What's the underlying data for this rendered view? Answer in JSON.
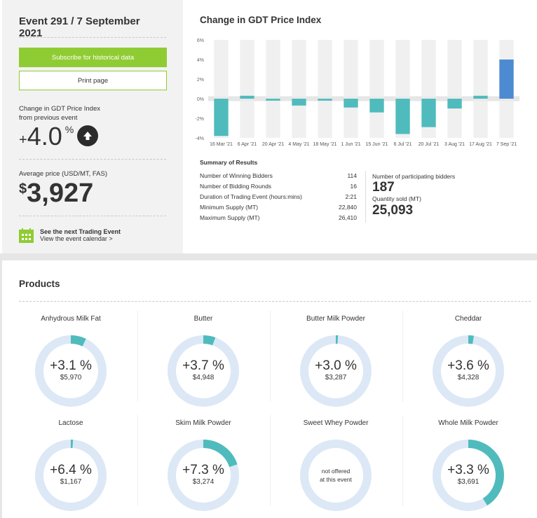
{
  "event": {
    "title": "Event 291 / 7 September 2021",
    "subscribe_label": "Subscribe for historical data",
    "print_label": "Print page",
    "change_label_1": "Change in GDT Price Index",
    "change_label_2": "from previous event",
    "change_sign": "+",
    "change_value": "4.0",
    "change_unit": "%",
    "avg_label": "Average price (USD/MT, FAS)",
    "avg_currency": "$",
    "avg_value": "3,927",
    "next_event": "See the next Trading Event",
    "calendar_link": "View the event calendar >"
  },
  "chart_data": {
    "type": "bar",
    "title": "Change in GDT Price Index",
    "categories": [
      "16 Mar '21",
      "6 Apr '21",
      "20 Apr '21",
      "4 May '21",
      "18 May '21",
      "1 Jun '21",
      "15 Jun '21",
      "6 Jul '21",
      "20 Jul '21",
      "3 Aug '21",
      "17 Aug '21",
      "7 Sep '21"
    ],
    "values": [
      -3.8,
      0.3,
      -0.2,
      -0.7,
      -0.2,
      -0.9,
      -1.4,
      -3.6,
      -2.9,
      -1.0,
      0.3,
      4.0
    ],
    "ylim": [
      -4,
      6
    ],
    "yticks": [
      "6%",
      "4%",
      "2%",
      "0%",
      "-2%",
      "-4%"
    ],
    "ytick_values": [
      6,
      4,
      2,
      0,
      -2,
      -4
    ],
    "colors": {
      "past": "#4fbbbd",
      "current": "#4e8ad2"
    }
  },
  "summary": {
    "title": "Summary of Results",
    "rows": [
      {
        "label": "Number of Winning Bidders",
        "value": "114"
      },
      {
        "label": "Number of Bidding Rounds",
        "value": "16"
      },
      {
        "label": "Duration of Trading Event (hours:mins)",
        "value": "2:21"
      },
      {
        "label": "Minimum Supply (MT)",
        "value": "22,840"
      },
      {
        "label": "Maximum Supply (MT)",
        "value": "26,410"
      }
    ],
    "bidders_label": "Number of participating bidders",
    "bidders_value": "187",
    "qty_label": "Quantity sold (MT)",
    "qty_value": "25,093"
  },
  "products": {
    "title": "Products",
    "items": [
      {
        "name": "Anhydrous Milk Fat",
        "change": "+3.1 %",
        "price": "$5,970",
        "share": 0.07
      },
      {
        "name": "Butter",
        "change": "+3.7 %",
        "price": "$4,948",
        "share": 0.055
      },
      {
        "name": "Butter Milk Powder",
        "change": "+3.0 %",
        "price": "$3,287",
        "share": 0.01
      },
      {
        "name": "Cheddar",
        "change": "+3.6 %",
        "price": "$4,328",
        "share": 0.025
      },
      {
        "name": "Lactose",
        "change": "+6.4 %",
        "price": "$1,167",
        "share": 0.01
      },
      {
        "name": "Skim Milk Powder",
        "change": "+7.3 %",
        "price": "$3,274",
        "share": 0.2
      },
      {
        "name": "Sweet Whey Powder",
        "na1": "not offered",
        "na2": "at this event",
        "share": 0
      },
      {
        "name": "Whole Milk Powder",
        "change": "+3.3 %",
        "price": "$3,691",
        "share": 0.41
      }
    ]
  }
}
